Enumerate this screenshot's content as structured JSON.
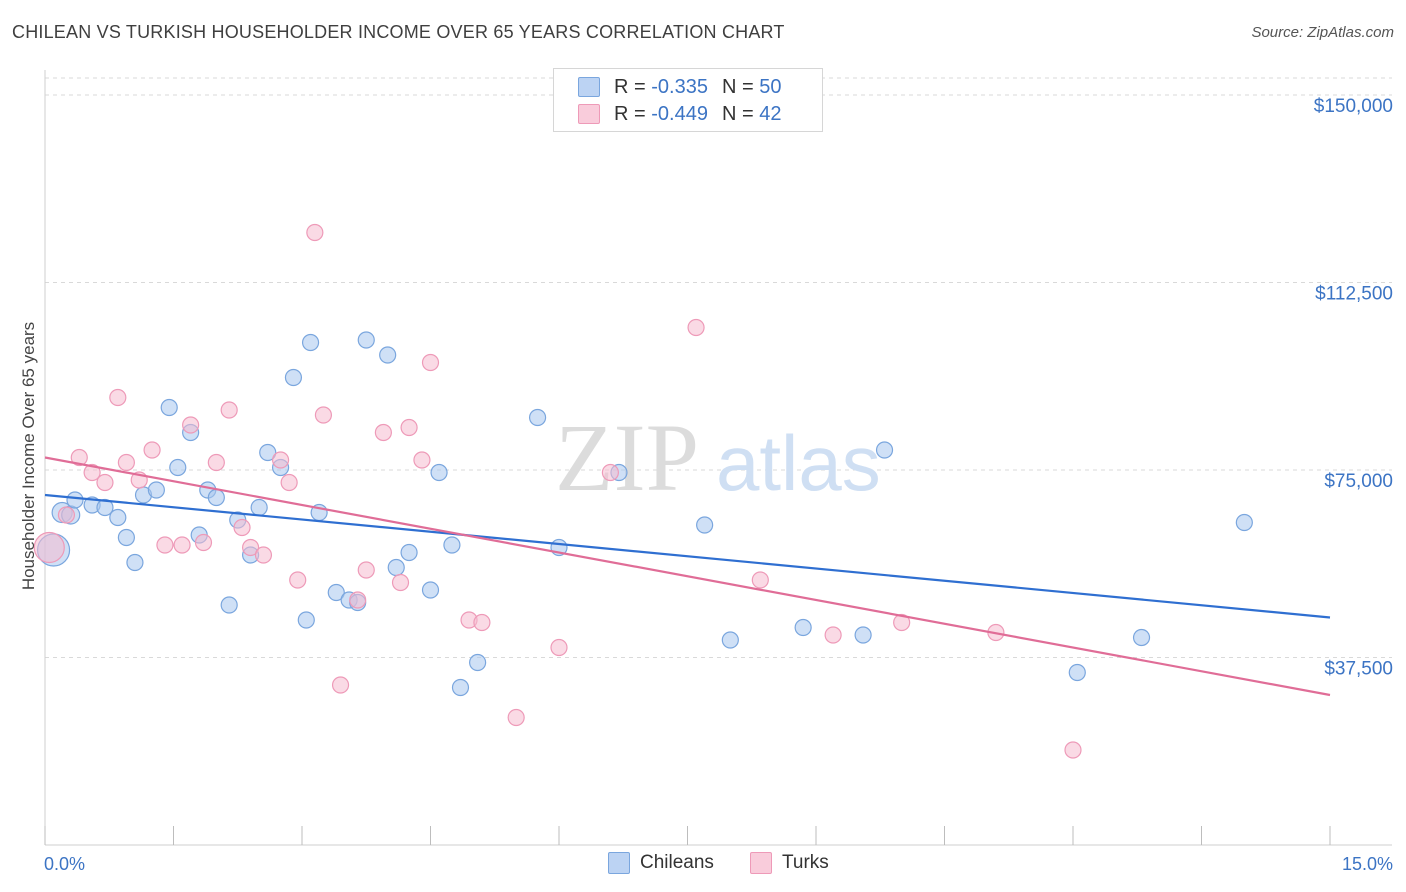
{
  "title": "CHILEAN VS TURKISH HOUSEHOLDER INCOME OVER 65 YEARS CORRELATION CHART",
  "source": "Source: ZipAtlas.com",
  "watermark": {
    "zip": "ZIP",
    "atlas": "atlas"
  },
  "legend_top": {
    "rows": [
      {
        "r_label": "R =",
        "r_value": "-0.335",
        "n_label": "N =",
        "n_value": "50"
      },
      {
        "r_label": "R =",
        "r_value": "-0.449",
        "n_label": "N =",
        "n_value": "42"
      }
    ]
  },
  "legend_bottom": {
    "chileans": "Chileans",
    "turks": "Turks"
  },
  "colors": {
    "chileans_fill": "#a8c6ee",
    "chileans_stroke": "#7aa6de",
    "chileans_line": "#2f6fd1",
    "turks_fill": "#f6bcd0",
    "turks_stroke": "#ee9ab8",
    "turks_line": "#e06d97",
    "axis_label": "#3c74c4",
    "grid": "#d9d9d9"
  },
  "chart_data": {
    "type": "scatter",
    "title": "CHILEAN VS TURKISH HOUSEHOLDER INCOME OVER 65 YEARS CORRELATION CHART",
    "xlabel": "",
    "ylabel": "Householder Income Over 65 years",
    "xlim": [
      0,
      15
    ],
    "ylim": [
      0,
      155000
    ],
    "x_tick_labels": [
      "0.0%",
      "15.0%"
    ],
    "y_ticks": [
      37500,
      75000,
      112500,
      150000
    ],
    "y_tick_labels": [
      "$37,500",
      "$75,000",
      "$112,500",
      "$150,000"
    ],
    "grid": true,
    "legend_position": "top-center",
    "series": [
      {
        "name": "Chileans",
        "r": -0.335,
        "n": 50,
        "trend": {
          "x": [
            0,
            15
          ],
          "y": [
            70000,
            45500
          ]
        },
        "points": [
          [
            0.1,
            59000,
            16
          ],
          [
            0.2,
            66500,
            10
          ],
          [
            0.3,
            66000,
            9
          ],
          [
            0.35,
            69000,
            8
          ],
          [
            0.55,
            68000,
            8
          ],
          [
            0.7,
            67500,
            8
          ],
          [
            0.85,
            65500,
            8
          ],
          [
            0.95,
            61500,
            8
          ],
          [
            1.05,
            56500,
            8
          ],
          [
            1.15,
            70000,
            8
          ],
          [
            1.3,
            71000,
            8
          ],
          [
            1.45,
            87500,
            8
          ],
          [
            1.55,
            75500,
            8
          ],
          [
            1.7,
            82500,
            8
          ],
          [
            1.8,
            62000,
            8
          ],
          [
            1.9,
            71000,
            8
          ],
          [
            2.0,
            69500,
            8
          ],
          [
            2.15,
            48000,
            8
          ],
          [
            2.25,
            65000,
            8
          ],
          [
            2.4,
            58000,
            8
          ],
          [
            2.5,
            67500,
            8
          ],
          [
            2.6,
            78500,
            8
          ],
          [
            2.75,
            75500,
            8
          ],
          [
            2.9,
            93500,
            8
          ],
          [
            3.05,
            45000,
            8
          ],
          [
            3.1,
            100500,
            8
          ],
          [
            3.2,
            66500,
            8
          ],
          [
            3.4,
            50500,
            8
          ],
          [
            3.55,
            49000,
            8
          ],
          [
            3.65,
            48500,
            8
          ],
          [
            3.75,
            101000,
            8
          ],
          [
            4.0,
            98000,
            8
          ],
          [
            4.1,
            55500,
            8
          ],
          [
            4.25,
            58500,
            8
          ],
          [
            4.5,
            51000,
            8
          ],
          [
            4.6,
            74500,
            8
          ],
          [
            4.75,
            60000,
            8
          ],
          [
            4.85,
            31500,
            8
          ],
          [
            5.05,
            36500,
            8
          ],
          [
            5.75,
            85500,
            8
          ],
          [
            6.0,
            59500,
            8
          ],
          [
            6.7,
            74500,
            8
          ],
          [
            7.7,
            64000,
            8
          ],
          [
            8.0,
            41000,
            8
          ],
          [
            8.85,
            43500,
            8
          ],
          [
            9.55,
            42000,
            8
          ],
          [
            9.8,
            79000,
            8
          ],
          [
            12.05,
            34500,
            8
          ],
          [
            12.8,
            41500,
            8
          ],
          [
            14.0,
            64500,
            8
          ]
        ]
      },
      {
        "name": "Turks",
        "r": -0.449,
        "n": 42,
        "trend": {
          "x": [
            0,
            15
          ],
          "y": [
            77500,
            30000
          ]
        },
        "points": [
          [
            0.05,
            59500,
            15
          ],
          [
            0.25,
            66000,
            8
          ],
          [
            0.4,
            77500,
            8
          ],
          [
            0.55,
            74500,
            8
          ],
          [
            0.7,
            72500,
            8
          ],
          [
            0.85,
            89500,
            8
          ],
          [
            0.95,
            76500,
            8
          ],
          [
            1.1,
            73000,
            8
          ],
          [
            1.25,
            79000,
            8
          ],
          [
            1.4,
            60000,
            8
          ],
          [
            1.6,
            60000,
            8
          ],
          [
            1.7,
            84000,
            8
          ],
          [
            1.85,
            60500,
            8
          ],
          [
            2.0,
            76500,
            8
          ],
          [
            2.15,
            87000,
            8
          ],
          [
            2.3,
            63500,
            8
          ],
          [
            2.4,
            59500,
            8
          ],
          [
            2.55,
            58000,
            8
          ],
          [
            2.75,
            77000,
            8
          ],
          [
            2.85,
            72500,
            8
          ],
          [
            2.95,
            53000,
            8
          ],
          [
            3.15,
            122500,
            8
          ],
          [
            3.25,
            86000,
            8
          ],
          [
            3.45,
            32000,
            8
          ],
          [
            3.65,
            49000,
            8
          ],
          [
            3.75,
            55000,
            8
          ],
          [
            3.95,
            82500,
            8
          ],
          [
            4.15,
            52500,
            8
          ],
          [
            4.25,
            83500,
            8
          ],
          [
            4.4,
            77000,
            8
          ],
          [
            4.5,
            96500,
            8
          ],
          [
            4.95,
            45000,
            8
          ],
          [
            5.1,
            44500,
            8
          ],
          [
            5.5,
            25500,
            8
          ],
          [
            6.0,
            39500,
            8
          ],
          [
            6.6,
            74500,
            8
          ],
          [
            7.6,
            103500,
            8
          ],
          [
            8.35,
            53000,
            8
          ],
          [
            9.2,
            42000,
            8
          ],
          [
            10.0,
            44500,
            8
          ],
          [
            11.1,
            42500,
            8
          ],
          [
            12.0,
            19000,
            8
          ]
        ]
      }
    ]
  }
}
